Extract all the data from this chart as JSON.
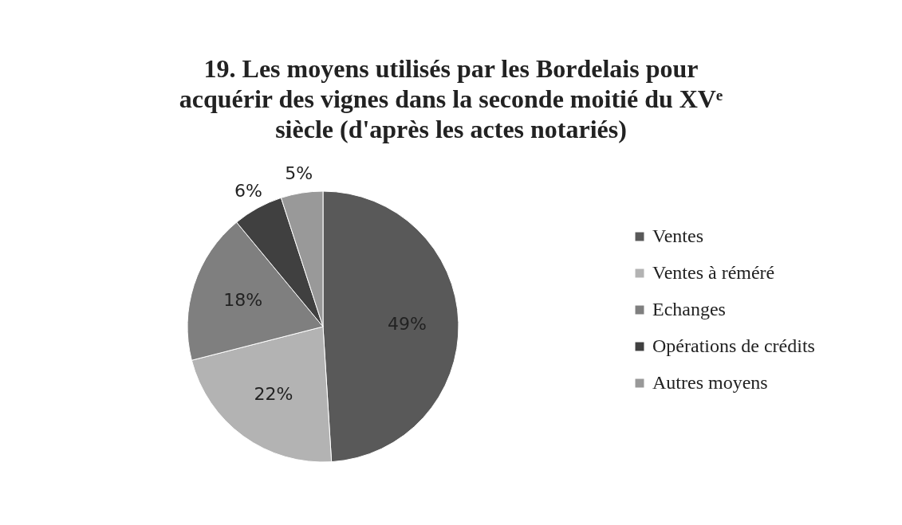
{
  "chart_data": {
    "type": "pie",
    "title": "19. Les moyens utilisés par les Bordelais pour acquérir des vignes dans la seconde moitié du XVᵉ siècle (d'après les actes notariés)",
    "categories": [
      "Ventes",
      "Ventes à réméré",
      "Echanges",
      "Opérations de crédits",
      "Autres moyens"
    ],
    "values": [
      49,
      22,
      18,
      6,
      5
    ],
    "colors": [
      "#595959",
      "#b3b3b3",
      "#7f7f7f",
      "#404040",
      "#999999"
    ],
    "value_labels": [
      "49%",
      "22%",
      "18%",
      "6%",
      "5%"
    ],
    "legend": "right"
  }
}
